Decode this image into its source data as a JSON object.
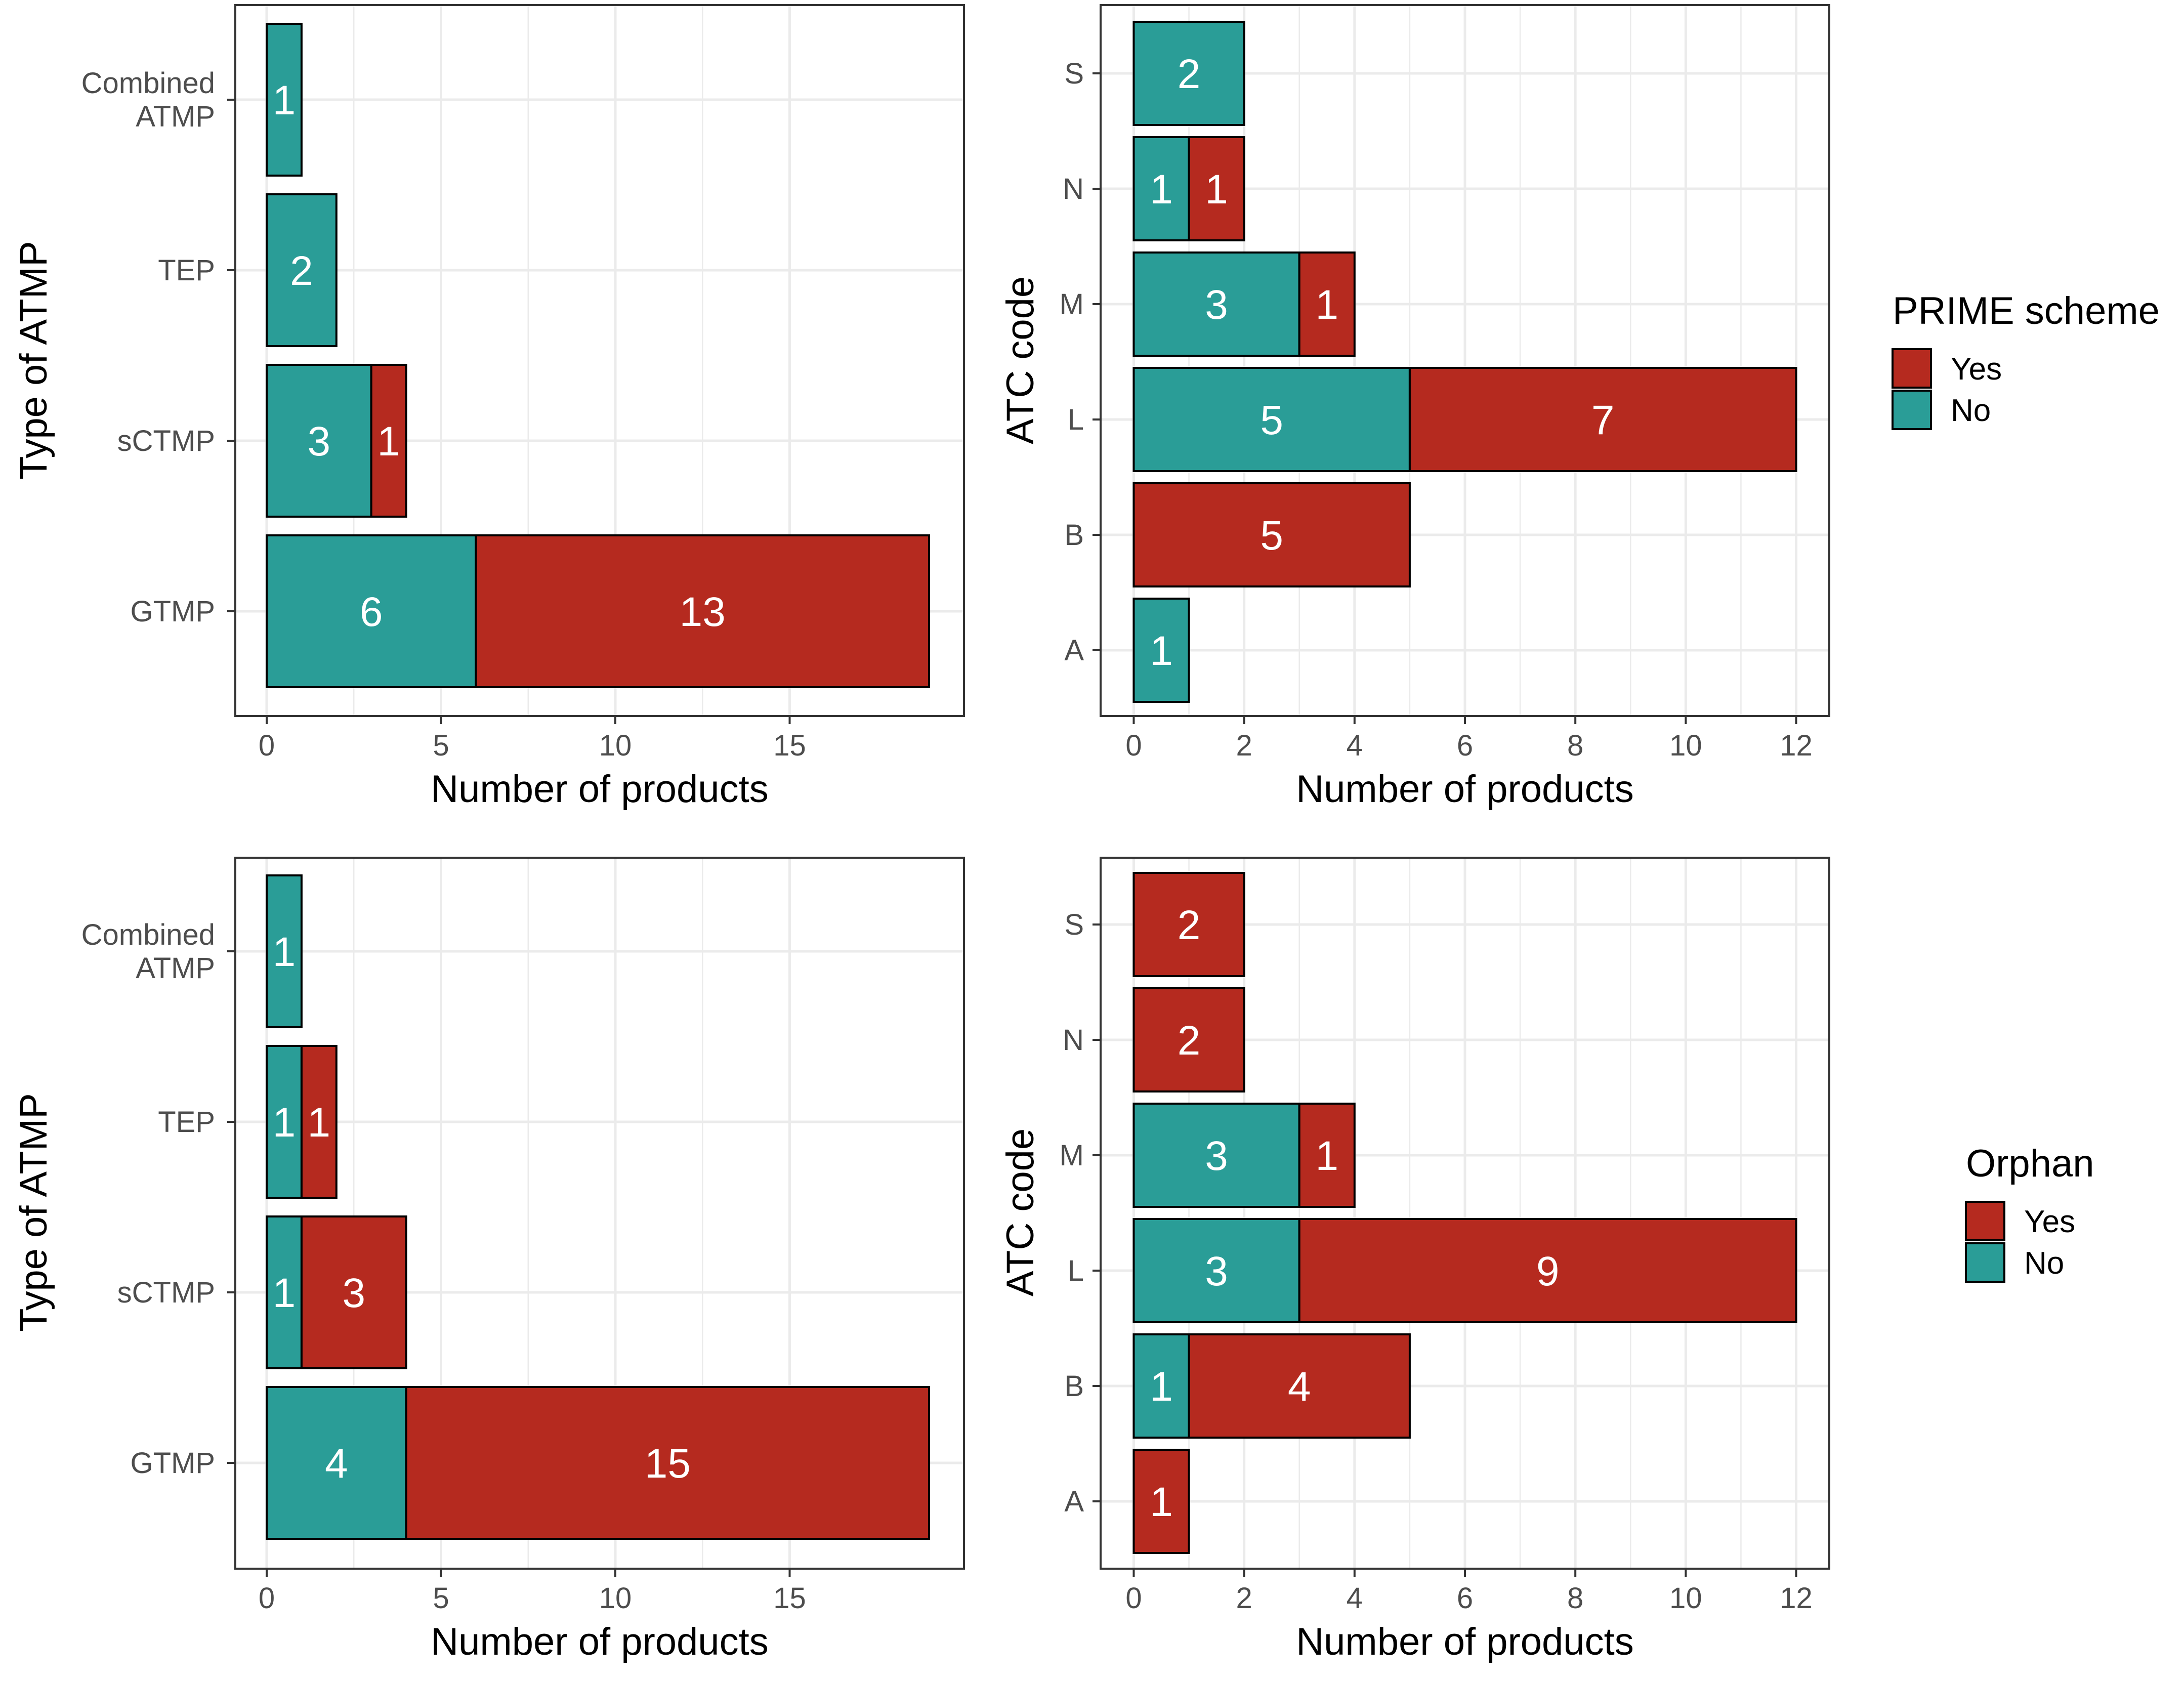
{
  "colors": {
    "yes": "#B52A1F",
    "no": "#2A9D97",
    "grid": "#EBEBEB",
    "panel_border": "#333333"
  },
  "legends": [
    {
      "title": "PRIME scheme",
      "items": [
        {
          "key": "yes",
          "label": "Yes"
        },
        {
          "key": "no",
          "label": "No"
        }
      ]
    },
    {
      "title": "Orphan",
      "items": [
        {
          "key": "yes",
          "label": "Yes"
        },
        {
          "key": "no",
          "label": "No"
        }
      ]
    }
  ],
  "chart_data": [
    {
      "type": "bar",
      "orientation": "horizontal",
      "stacked": true,
      "grouping": "PRIME scheme",
      "categories": [
        "Combined\nATMP",
        "TEP",
        "sCTMP",
        "GTMP"
      ],
      "series": [
        {
          "name": "No",
          "key": "no",
          "values": [
            1,
            2,
            3,
            6
          ]
        },
        {
          "name": "Yes",
          "key": "yes",
          "values": [
            0,
            0,
            1,
            13
          ]
        }
      ],
      "xlabel": "Number of products",
      "ylabel": "Type of ATMP",
      "xlim": [
        -0.9,
        20
      ],
      "xticks": [
        0,
        5,
        10,
        15
      ],
      "grid": true
    },
    {
      "type": "bar",
      "orientation": "horizontal",
      "stacked": true,
      "grouping": "PRIME scheme",
      "categories": [
        "S",
        "N",
        "M",
        "L",
        "B",
        "A"
      ],
      "series": [
        {
          "name": "No",
          "key": "no",
          "values": [
            2,
            1,
            3,
            5,
            0,
            1
          ]
        },
        {
          "name": "Yes",
          "key": "yes",
          "values": [
            0,
            1,
            1,
            7,
            5,
            0
          ]
        }
      ],
      "xlabel": "Number of products",
      "ylabel": "ATC code",
      "xlim": [
        -0.6,
        12.6
      ],
      "xticks": [
        0,
        2,
        4,
        6,
        8,
        10,
        12
      ],
      "grid": true
    },
    {
      "type": "bar",
      "orientation": "horizontal",
      "stacked": true,
      "grouping": "Orphan",
      "categories": [
        "Combined\nATMP",
        "TEP",
        "sCTMP",
        "GTMP"
      ],
      "series": [
        {
          "name": "No",
          "key": "no",
          "values": [
            1,
            1,
            1,
            4
          ]
        },
        {
          "name": "Yes",
          "key": "yes",
          "values": [
            0,
            1,
            3,
            15
          ]
        }
      ],
      "xlabel": "Number of products",
      "ylabel": "Type of ATMP",
      "xlim": [
        -0.9,
        20
      ],
      "xticks": [
        0,
        5,
        10,
        15
      ],
      "grid": true
    },
    {
      "type": "bar",
      "orientation": "horizontal",
      "stacked": true,
      "grouping": "Orphan",
      "categories": [
        "S",
        "N",
        "M",
        "L",
        "B",
        "A"
      ],
      "series": [
        {
          "name": "No",
          "key": "no",
          "values": [
            0,
            0,
            3,
            3,
            1,
            0
          ]
        },
        {
          "name": "Yes",
          "key": "yes",
          "values": [
            2,
            2,
            1,
            9,
            4,
            1
          ]
        }
      ],
      "xlabel": "Number of products",
      "ylabel": "ATC code",
      "xlim": [
        -0.6,
        12.6
      ],
      "xticks": [
        0,
        2,
        4,
        6,
        8,
        10,
        12
      ],
      "grid": true
    }
  ]
}
